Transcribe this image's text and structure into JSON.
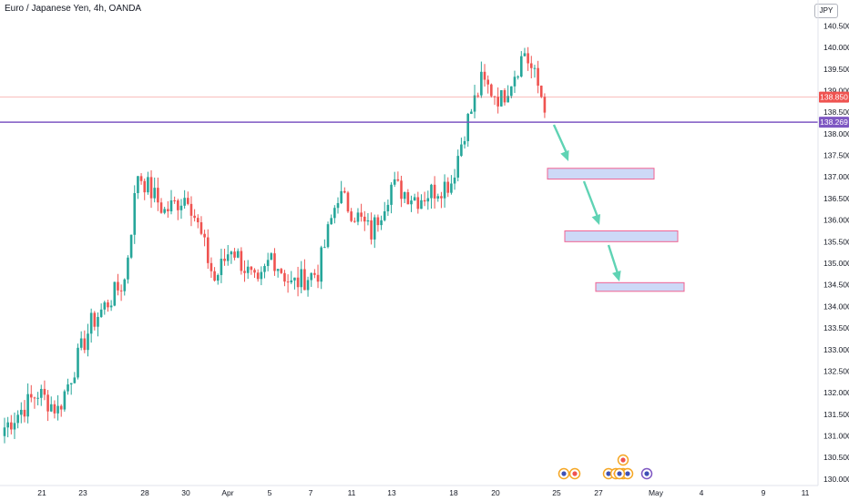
{
  "header": {
    "title": "Euro / Japanese Yen, 4h, OANDA",
    "currency_badge": "JPY"
  },
  "price_tags": {
    "current": "138.850",
    "level": "138.269"
  },
  "colors": {
    "up": "#26a69a",
    "down": "#ef5350",
    "level_line": "#7e57c2",
    "current_line": "#ef5350",
    "target_fill": "#cdd9f7",
    "target_border": "#f06292",
    "arrow": "#5fd3b4",
    "grid": "#f0f3fa"
  },
  "chart_data": {
    "type": "candlestick",
    "title": "Euro / Japanese Yen, 4h, OANDA",
    "symbol": "EURJPY",
    "timeframe": "4h",
    "source": "OANDA",
    "ylim": [
      129.85,
      141.1
    ],
    "y_ticks": [
      "130.000",
      "130.500",
      "131.000",
      "131.500",
      "132.000",
      "132.500",
      "133.000",
      "133.500",
      "134.000",
      "134.500",
      "135.000",
      "135.500",
      "136.000",
      "136.500",
      "137.000",
      "137.500",
      "138.000",
      "138.500",
      "139.000",
      "139.500",
      "140.000",
      "140.500"
    ],
    "x_ticks": [
      "21",
      "23",
      "28",
      "30",
      "Apr",
      "5",
      "7",
      "11",
      "13",
      "18",
      "20",
      "25",
      "27",
      "May",
      "4",
      "9",
      "11"
    ],
    "grid": false,
    "anchors": [
      {
        "bar": 0,
        "price": 131.2
      },
      {
        "bar": 10,
        "price": 132.0
      },
      {
        "bar": 16,
        "price": 131.6
      },
      {
        "bar": 26,
        "price": 133.6
      },
      {
        "bar": 36,
        "price": 134.6
      },
      {
        "bar": 40,
        "price": 137.1
      },
      {
        "bar": 48,
        "price": 136.2
      },
      {
        "bar": 55,
        "price": 136.6
      },
      {
        "bar": 63,
        "price": 134.6
      },
      {
        "bar": 68,
        "price": 135.4
      },
      {
        "bar": 76,
        "price": 134.4
      },
      {
        "bar": 80,
        "price": 135.2
      },
      {
        "bar": 86,
        "price": 134.5
      },
      {
        "bar": 94,
        "price": 134.8
      },
      {
        "bar": 100,
        "price": 136.6
      },
      {
        "bar": 110,
        "price": 135.7
      },
      {
        "bar": 116,
        "price": 136.8
      },
      {
        "bar": 124,
        "price": 136.5
      },
      {
        "bar": 134,
        "price": 136.9
      },
      {
        "bar": 138,
        "price": 138.1
      },
      {
        "bar": 143,
        "price": 139.2
      },
      {
        "bar": 149,
        "price": 138.8
      },
      {
        "bar": 156,
        "price": 139.9
      },
      {
        "bar": 162,
        "price": 138.7
      }
    ],
    "levels": [
      {
        "name": "current",
        "price": 138.85
      },
      {
        "name": "support",
        "price": 138.269
      }
    ],
    "target_zones": [
      {
        "from_date": "25",
        "to_date": "May",
        "low": 136.95,
        "high": 137.2
      },
      {
        "from_date": "27",
        "to_date": "4",
        "low": 135.5,
        "high": 135.75
      },
      {
        "from_date": "27",
        "to_date": "4",
        "low": 134.35,
        "high": 134.55
      }
    ],
    "event_markers": 9
  }
}
